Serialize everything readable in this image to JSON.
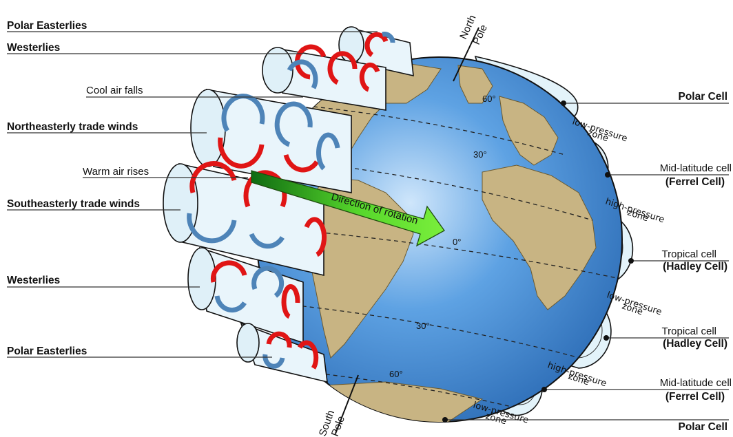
{
  "left_labels": {
    "polar_easterlies_top": "Polar Easterlies",
    "westerlies_top": "Westerlies",
    "cool_air_falls": "Cool air falls",
    "northeasterly_trade_winds": "Northeasterly trade winds",
    "warm_air_rises": "Warm air rises",
    "southeasterly_trade_winds": "Southeasterly trade winds",
    "westerlies_bottom": "Westerlies",
    "polar_easterlies_bottom": "Polar Easterlies"
  },
  "right_labels": {
    "polar_cell_top": "Polar Cell",
    "low_pressure_1a": "low-pressure",
    "low_pressure_1b": "zone",
    "mid_latitude_cell_top": "Mid-latitude cell",
    "ferrel_cell_top": "(Ferrel Cell)",
    "high_pressure_1a": "high-pressure",
    "high_pressure_1b": "zone",
    "tropical_cell_top": "Tropical cell",
    "hadley_cell_top": "(Hadley Cell)",
    "low_pressure_2a": "low-pressure",
    "low_pressure_2b": "zone",
    "tropical_cell_bottom": "Tropical cell",
    "hadley_cell_bottom": "(Hadley Cell)",
    "high_pressure_2a": "high-pressure",
    "high_pressure_2b": "zone",
    "mid_latitude_cell_bottom": "Mid-latitude cell",
    "ferrel_cell_bottom": "(Ferrel Cell)",
    "low_pressure_3a": "low-pressure",
    "low_pressure_3b": "zone",
    "polar_cell_bottom": "Polar Cell"
  },
  "globe": {
    "north_pole_a": "North",
    "north_pole_b": "Pole",
    "south_pole_a": "South",
    "south_pole_b": "Pole",
    "rotation_label": "Direction of rotation",
    "lat_60n": "60°",
    "lat_30n": "30°",
    "lat_0": "0°",
    "lat_30s": "30°",
    "lat_60s": "60°"
  },
  "colors": {
    "ocean": "#4a90d9",
    "land": "#c8b483",
    "rising_air": "#e01515",
    "falling_air": "#4e84b8",
    "arrow": "#4bd12a"
  }
}
